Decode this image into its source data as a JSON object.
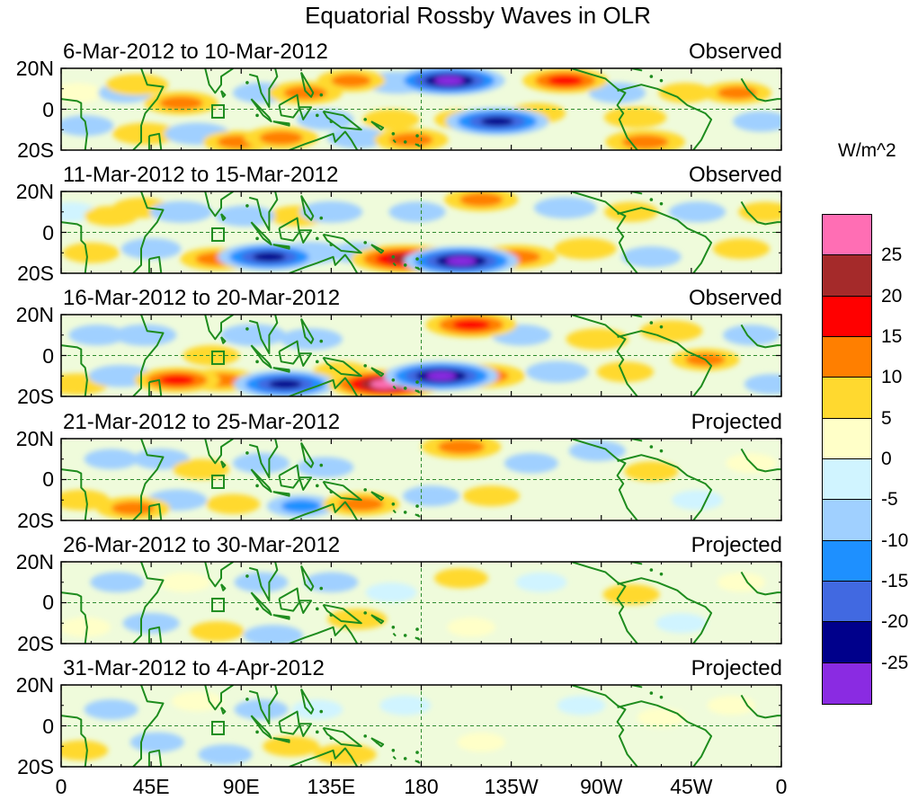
{
  "title": "Equatorial Rossby Waves in OLR",
  "colorbar": {
    "units": "W/m^2",
    "ticks": [
      "25",
      "20",
      "15",
      "10",
      "5",
      "0",
      "-5",
      "-10",
      "-15",
      "-20",
      "-25"
    ],
    "colors": [
      "#ff6eb4",
      "#a52a2a",
      "#ff0000",
      "#ff7f00",
      "#ffd92f",
      "#ffffc8",
      "#d0f4ff",
      "#a0d0ff",
      "#1e90ff",
      "#4169e1",
      "#00008b",
      "#8a2be2"
    ]
  },
  "chart_data": {
    "type": "heatmap",
    "variable": "OLR anomaly (Equatorial Rossby wave filtered)",
    "units": "W/m^2",
    "contour_levels": [
      -25,
      -20,
      -15,
      -10,
      -5,
      0,
      5,
      10,
      15,
      20,
      25
    ],
    "lat_ticks": [
      "20N",
      "0",
      "20S"
    ],
    "lat_range": [
      -20,
      20
    ],
    "lon_ticks": [
      "0",
      "45E",
      "90E",
      "135E",
      "180",
      "135W",
      "90W",
      "45W",
      "0"
    ],
    "lon_tick_degrees": [
      0,
      45,
      90,
      135,
      180,
      225,
      270,
      315,
      360
    ],
    "lon_range": [
      0,
      360
    ],
    "reference_lines": [
      "equator",
      "180"
    ],
    "panels": [
      {
        "period": "6-Mar-2012 to 10-Mar-2012",
        "status": "Observed",
        "anomalies": [
          {
            "lon": 8,
            "lat": 8,
            "value": 4
          },
          {
            "lon": 12,
            "lat": -8,
            "value": -6
          },
          {
            "lon": 32,
            "lat": 8,
            "value": -5
          },
          {
            "lon": 42,
            "lat": -12,
            "value": 9
          },
          {
            "lon": 38,
            "lat": 12,
            "value": 8
          },
          {
            "lon": 60,
            "lat": 3,
            "value": 12
          },
          {
            "lon": 68,
            "lat": -12,
            "value": -9
          },
          {
            "lon": 88,
            "lat": -16,
            "value": 10
          },
          {
            "lon": 100,
            "lat": 8,
            "value": -6
          },
          {
            "lon": 110,
            "lat": -14,
            "value": 12
          },
          {
            "lon": 122,
            "lat": 8,
            "value": 12
          },
          {
            "lon": 132,
            "lat": -5,
            "value": -6
          },
          {
            "lon": 145,
            "lat": 14,
            "value": 10
          },
          {
            "lon": 148,
            "lat": -14,
            "value": -7
          },
          {
            "lon": 165,
            "lat": -5,
            "value": 6
          },
          {
            "lon": 168,
            "lat": 13,
            "value": -9
          },
          {
            "lon": 175,
            "lat": -15,
            "value": 12
          },
          {
            "lon": 194,
            "lat": 14,
            "value": -25
          },
          {
            "lon": 200,
            "lat": -5,
            "value": 5
          },
          {
            "lon": 218,
            "lat": -6,
            "value": -22
          },
          {
            "lon": 238,
            "lat": -2,
            "value": 6
          },
          {
            "lon": 252,
            "lat": 14,
            "value": 16
          },
          {
            "lon": 278,
            "lat": 8,
            "value": -6
          },
          {
            "lon": 287,
            "lat": -4,
            "value": 8
          },
          {
            "lon": 292,
            "lat": -16,
            "value": 14
          },
          {
            "lon": 312,
            "lat": 8,
            "value": 5
          },
          {
            "lon": 338,
            "lat": 8,
            "value": 10
          },
          {
            "lon": 350,
            "lat": -6,
            "value": -6
          }
        ]
      },
      {
        "period": "11-Mar-2012 to 15-Mar-2012",
        "status": "Observed",
        "anomalies": [
          {
            "lon": 5,
            "lat": 10,
            "value": -4
          },
          {
            "lon": 15,
            "lat": -10,
            "value": 6
          },
          {
            "lon": 25,
            "lat": 8,
            "value": 5
          },
          {
            "lon": 40,
            "lat": 12,
            "value": 6
          },
          {
            "lon": 45,
            "lat": -8,
            "value": -7
          },
          {
            "lon": 60,
            "lat": 10,
            "value": -8
          },
          {
            "lon": 78,
            "lat": -13,
            "value": 12
          },
          {
            "lon": 92,
            "lat": 8,
            "value": -7
          },
          {
            "lon": 104,
            "lat": -12,
            "value": -22
          },
          {
            "lon": 118,
            "lat": 8,
            "value": 6
          },
          {
            "lon": 125,
            "lat": -10,
            "value": -9
          },
          {
            "lon": 135,
            "lat": 10,
            "value": -8
          },
          {
            "lon": 148,
            "lat": -10,
            "value": -6
          },
          {
            "lon": 172,
            "lat": -13,
            "value": 24
          },
          {
            "lon": 178,
            "lat": 10,
            "value": -6
          },
          {
            "lon": 210,
            "lat": 16,
            "value": 12
          },
          {
            "lon": 200,
            "lat": -14,
            "value": -26
          },
          {
            "lon": 228,
            "lat": -12,
            "value": 14
          },
          {
            "lon": 252,
            "lat": 12,
            "value": -8
          },
          {
            "lon": 262,
            "lat": -8,
            "value": 8
          },
          {
            "lon": 285,
            "lat": 10,
            "value": 5
          },
          {
            "lon": 295,
            "lat": -12,
            "value": -7
          },
          {
            "lon": 318,
            "lat": 10,
            "value": -6
          },
          {
            "lon": 340,
            "lat": -8,
            "value": 6
          },
          {
            "lon": 352,
            "lat": 10,
            "value": 5
          }
        ]
      },
      {
        "period": "16-Mar-2012 to 20-Mar-2012",
        "status": "Observed",
        "anomalies": [
          {
            "lon": 8,
            "lat": -14,
            "value": 8
          },
          {
            "lon": 18,
            "lat": 10,
            "value": -6
          },
          {
            "lon": 30,
            "lat": -10,
            "value": -9
          },
          {
            "lon": 42,
            "lat": 10,
            "value": -8
          },
          {
            "lon": 58,
            "lat": -12,
            "value": 16
          },
          {
            "lon": 75,
            "lat": 0,
            "value": 6
          },
          {
            "lon": 80,
            "lat": -12,
            "value": 12
          },
          {
            "lon": 96,
            "lat": 10,
            "value": -9
          },
          {
            "lon": 112,
            "lat": -14,
            "value": -22
          },
          {
            "lon": 125,
            "lat": 8,
            "value": -8
          },
          {
            "lon": 140,
            "lat": -8,
            "value": 6
          },
          {
            "lon": 162,
            "lat": -14,
            "value": 26
          },
          {
            "lon": 190,
            "lat": -10,
            "value": -26
          },
          {
            "lon": 205,
            "lat": 15,
            "value": 18
          },
          {
            "lon": 212,
            "lat": -10,
            "value": 14
          },
          {
            "lon": 230,
            "lat": 10,
            "value": -7
          },
          {
            "lon": 248,
            "lat": -8,
            "value": -8
          },
          {
            "lon": 268,
            "lat": 8,
            "value": 8
          },
          {
            "lon": 282,
            "lat": -8,
            "value": 6
          },
          {
            "lon": 305,
            "lat": 12,
            "value": 8
          },
          {
            "lon": 322,
            "lat": -2,
            "value": 10
          },
          {
            "lon": 345,
            "lat": 10,
            "value": -6
          },
          {
            "lon": 355,
            "lat": -14,
            "value": -5
          }
        ]
      },
      {
        "period": "21-Mar-2012 to 25-Mar-2012",
        "status": "Projected",
        "anomalies": [
          {
            "lon": 10,
            "lat": -10,
            "value": 6
          },
          {
            "lon": 25,
            "lat": 10,
            "value": -5
          },
          {
            "lon": 36,
            "lat": -14,
            "value": 12
          },
          {
            "lon": 50,
            "lat": 10,
            "value": -6
          },
          {
            "lon": 58,
            "lat": -10,
            "value": -7
          },
          {
            "lon": 70,
            "lat": 5,
            "value": 6
          },
          {
            "lon": 86,
            "lat": -12,
            "value": 5
          },
          {
            "lon": 100,
            "lat": 8,
            "value": -6
          },
          {
            "lon": 120,
            "lat": -13,
            "value": -10
          },
          {
            "lon": 132,
            "lat": 6,
            "value": -6
          },
          {
            "lon": 150,
            "lat": -12,
            "value": 13
          },
          {
            "lon": 185,
            "lat": -8,
            "value": -6
          },
          {
            "lon": 200,
            "lat": 16,
            "value": 14
          },
          {
            "lon": 215,
            "lat": -8,
            "value": 6
          },
          {
            "lon": 235,
            "lat": 8,
            "value": -5
          },
          {
            "lon": 268,
            "lat": 14,
            "value": -6
          },
          {
            "lon": 295,
            "lat": 4,
            "value": 5
          },
          {
            "lon": 318,
            "lat": -10,
            "value": -4
          },
          {
            "lon": 345,
            "lat": 8,
            "value": 4
          }
        ]
      },
      {
        "period": "26-Mar-2012 to 30-Mar-2012",
        "status": "Projected",
        "anomalies": [
          {
            "lon": 12,
            "lat": -12,
            "value": 4
          },
          {
            "lon": 28,
            "lat": 10,
            "value": -5
          },
          {
            "lon": 45,
            "lat": -10,
            "value": -6
          },
          {
            "lon": 62,
            "lat": 10,
            "value": 4
          },
          {
            "lon": 78,
            "lat": -14,
            "value": 5
          },
          {
            "lon": 100,
            "lat": 10,
            "value": -5
          },
          {
            "lon": 106,
            "lat": -16,
            "value": -7
          },
          {
            "lon": 135,
            "lat": 10,
            "value": -5
          },
          {
            "lon": 148,
            "lat": -8,
            "value": 7
          },
          {
            "lon": 165,
            "lat": 5,
            "value": -4
          },
          {
            "lon": 200,
            "lat": 12,
            "value": 5
          },
          {
            "lon": 205,
            "lat": -12,
            "value": 3
          },
          {
            "lon": 240,
            "lat": 10,
            "value": -4
          },
          {
            "lon": 285,
            "lat": 4,
            "value": 6
          },
          {
            "lon": 310,
            "lat": -10,
            "value": -4
          },
          {
            "lon": 340,
            "lat": 10,
            "value": 3
          }
        ]
      },
      {
        "period": "31-Mar-2012 to 4-Apr-2012",
        "status": "Projected",
        "anomalies": [
          {
            "lon": 10,
            "lat": -12,
            "value": 5
          },
          {
            "lon": 25,
            "lat": 8,
            "value": -5
          },
          {
            "lon": 48,
            "lat": -8,
            "value": -5
          },
          {
            "lon": 68,
            "lat": 12,
            "value": 4
          },
          {
            "lon": 82,
            "lat": -14,
            "value": -5
          },
          {
            "lon": 100,
            "lat": 8,
            "value": -5
          },
          {
            "lon": 115,
            "lat": -10,
            "value": 6
          },
          {
            "lon": 128,
            "lat": 8,
            "value": -4
          },
          {
            "lon": 142,
            "lat": -14,
            "value": 8
          },
          {
            "lon": 172,
            "lat": 10,
            "value": -4
          },
          {
            "lon": 210,
            "lat": -8,
            "value": 3
          },
          {
            "lon": 260,
            "lat": 10,
            "value": -3
          },
          {
            "lon": 300,
            "lat": 4,
            "value": 3
          },
          {
            "lon": 335,
            "lat": 10,
            "value": 3
          }
        ]
      }
    ]
  }
}
